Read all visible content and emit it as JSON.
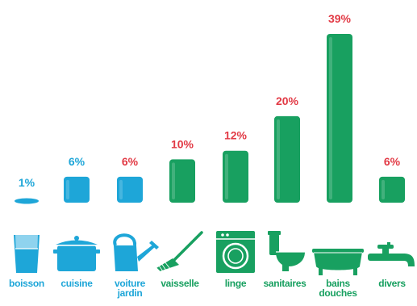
{
  "chart_data": {
    "type": "bar",
    "title": "",
    "xlabel": "",
    "ylabel": "",
    "ylim": [
      0,
      39
    ],
    "grid": false,
    "legend": "none",
    "categories": [
      [
        "boisson"
      ],
      [
        "cuisine"
      ],
      [
        "voiture",
        "jardin"
      ],
      [
        "vaisselle"
      ],
      [
        "linge"
      ],
      [
        "sanitaires"
      ],
      [
        "bains",
        "douches"
      ],
      [
        "divers"
      ]
    ],
    "values": [
      1,
      6,
      6,
      10,
      12,
      20,
      39,
      6
    ],
    "data_labels": [
      "1%",
      "6%",
      "6%",
      "10%",
      "12%",
      "20%",
      "39%",
      "6%"
    ],
    "icons": [
      "glass-icon",
      "pot-icon",
      "watering-can-icon",
      "brush-icon",
      "washing-machine-icon",
      "toilet-icon",
      "bathtub-icon",
      "faucet-icon"
    ],
    "bar_colors": [
      "#1ea6d8",
      "#1ea6d8",
      "#1ea6d8",
      "#18a060",
      "#18a060",
      "#18a060",
      "#18a060",
      "#18a060"
    ],
    "label_colors": [
      "#1ea6d8",
      "#1ea6d8",
      "#1ea6d8",
      "#18a060",
      "#18a060",
      "#18a060",
      "#18a060",
      "#18a060"
    ],
    "value_label_colors": [
      "#1ea6d8",
      "#1ea6d8",
      "#e23a45",
      "#e23a45",
      "#e23a45",
      "#e23a45",
      "#e23a45",
      "#e23a45"
    ]
  }
}
